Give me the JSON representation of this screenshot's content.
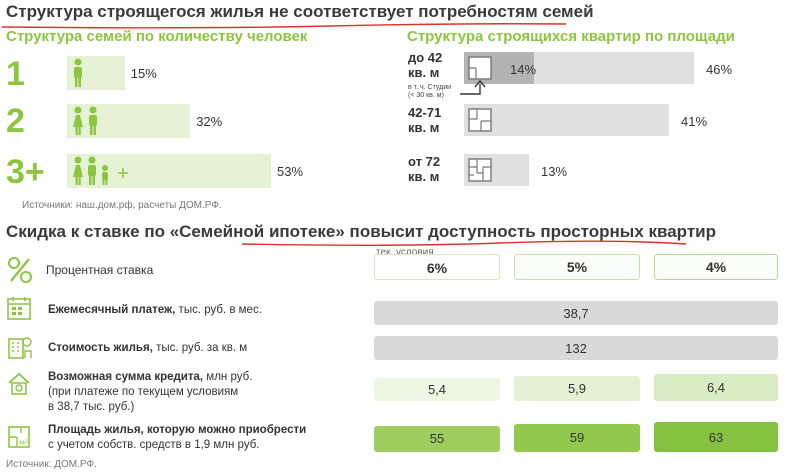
{
  "title1": "Структура строящегося жилья не соответствует потребностям семей",
  "families": {
    "title": "Структура семей по количеству человек",
    "rows": [
      {
        "label": "1",
        "value": 15,
        "display": "15%"
      },
      {
        "label": "2",
        "value": 32,
        "display": "32%"
      },
      {
        "label": "3+",
        "value": 53,
        "display": "53%"
      }
    ]
  },
  "apartments": {
    "title": "Структура строящихся квартир по площади",
    "rows": [
      {
        "label_line1": "до 42",
        "label_line2": "кв. м",
        "value": 46,
        "display": "46%",
        "sub_value": 14,
        "sub_display": "14%"
      },
      {
        "label_line1": "42-71",
        "label_line2": "кв. м",
        "value": 41,
        "display": "41%"
      },
      {
        "label_line1": "от 72",
        "label_line2": "кв. м",
        "value": 13,
        "display": "13%"
      }
    ],
    "studio_note_line1": "в т. ч. Студии",
    "studio_note_line2": "(< 30 кв. м)"
  },
  "source1": "Источники: наш.дом.рф, расчеты ДОМ.РФ.",
  "title2": "Скидка к ставке по «Семейной ипотеке» повысит доступность просторных квартир",
  "mortgage": {
    "current_label": "тек. условия",
    "rate_row_label": "Процентная ставка",
    "rates": [
      "6%",
      "5%",
      "4%"
    ],
    "payment": {
      "label_bold": "Ежемесячный платеж,",
      "label_rest": " тыс. руб. в мес.",
      "value": "38,7"
    },
    "price": {
      "label_bold": "Стоимость жилья,",
      "label_rest": " тыс. руб. за кв. м",
      "value": "132"
    },
    "loan": {
      "label_bold": "Возможная сумма кредита,",
      "label_rest": " млн руб.",
      "line2": "(при платеже по текущем условиям",
      "line3": "в 38,7 тыс. руб.)",
      "values": [
        5.4,
        5.9,
        6.4
      ],
      "displays": [
        "5,4",
        "5,9",
        "6,4"
      ]
    },
    "area": {
      "label_bold": "Площадь жилья, которую можно приобрести",
      "line2": "с учетом собств. средств в 1,9 млн руб.",
      "values": [
        55,
        59,
        63
      ],
      "displays": [
        "55",
        "59",
        "63"
      ]
    }
  },
  "source2": "Источник: ДОМ.РФ.",
  "chart_data": [
    {
      "type": "bar",
      "title": "Структура семей по количеству человек",
      "categories": [
        "1",
        "2",
        "3+"
      ],
      "values": [
        15,
        32,
        53
      ]
    },
    {
      "type": "bar",
      "title": "Структура строящихся квартир по площади",
      "categories": [
        "до 42 кв. м",
        "42-71 кв. м",
        "от 72 кв. м"
      ],
      "values": [
        46,
        41,
        13
      ],
      "annotations": [
        {
          "category": "до 42 кв. м",
          "note": "в т. ч. Студии (< 30 кв. м)",
          "value": 14
        }
      ]
    },
    {
      "type": "table",
      "columns": [
        "6%",
        "5%",
        "4%"
      ],
      "rows": [
        {
          "label": "Ежемесячный платеж, тыс. руб. в мес.",
          "values": [
            38.7,
            38.7,
            38.7
          ]
        },
        {
          "label": "Стоимость жилья, тыс. руб. за кв. м",
          "values": [
            132,
            132,
            132
          ]
        },
        {
          "label": "Возможная сумма кредита, млн руб.",
          "values": [
            5.4,
            5.9,
            6.4
          ]
        },
        {
          "label": "Площадь жилья, которую можно приобрести",
          "values": [
            55,
            59,
            63
          ]
        }
      ]
    }
  ],
  "colors": {
    "green": "#8cc63f",
    "light_green": "#e6f2d6",
    "mid_green": "#c9e4a6",
    "dark_green": "#8cc650",
    "gray": "#d9d9d9",
    "dark_gray": "#b3b3b3"
  }
}
